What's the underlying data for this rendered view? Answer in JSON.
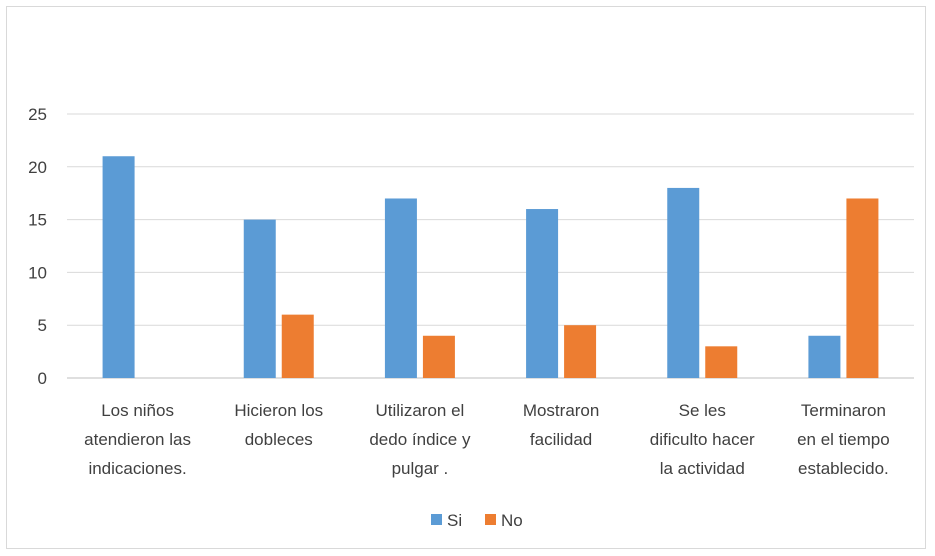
{
  "chart_data": {
    "type": "bar",
    "title": "",
    "xlabel": "",
    "ylabel": "",
    "ylim": [
      0,
      25
    ],
    "yticks": [
      0,
      5,
      10,
      15,
      20,
      25
    ],
    "grid": true,
    "legend_position": "bottom",
    "categories": [
      [
        "Los niños",
        "atendieron las",
        "indicaciones."
      ],
      [
        "Hicieron los",
        "dobleces"
      ],
      [
        "Utilizaron el",
        "dedo índice y",
        "pulgar ."
      ],
      [
        "Mostraron",
        "facilidad"
      ],
      [
        "Se les",
        "dificulto hacer",
        "la actividad"
      ],
      [
        "Terminaron",
        "en el tiempo",
        "establecido."
      ]
    ],
    "series": [
      {
        "name": "Si",
        "color": "#5b9bd5",
        "values": [
          21,
          15,
          17,
          16,
          18,
          4
        ]
      },
      {
        "name": "No",
        "color": "#ed7d31",
        "values": [
          0,
          6,
          4,
          5,
          3,
          17
        ]
      }
    ]
  }
}
